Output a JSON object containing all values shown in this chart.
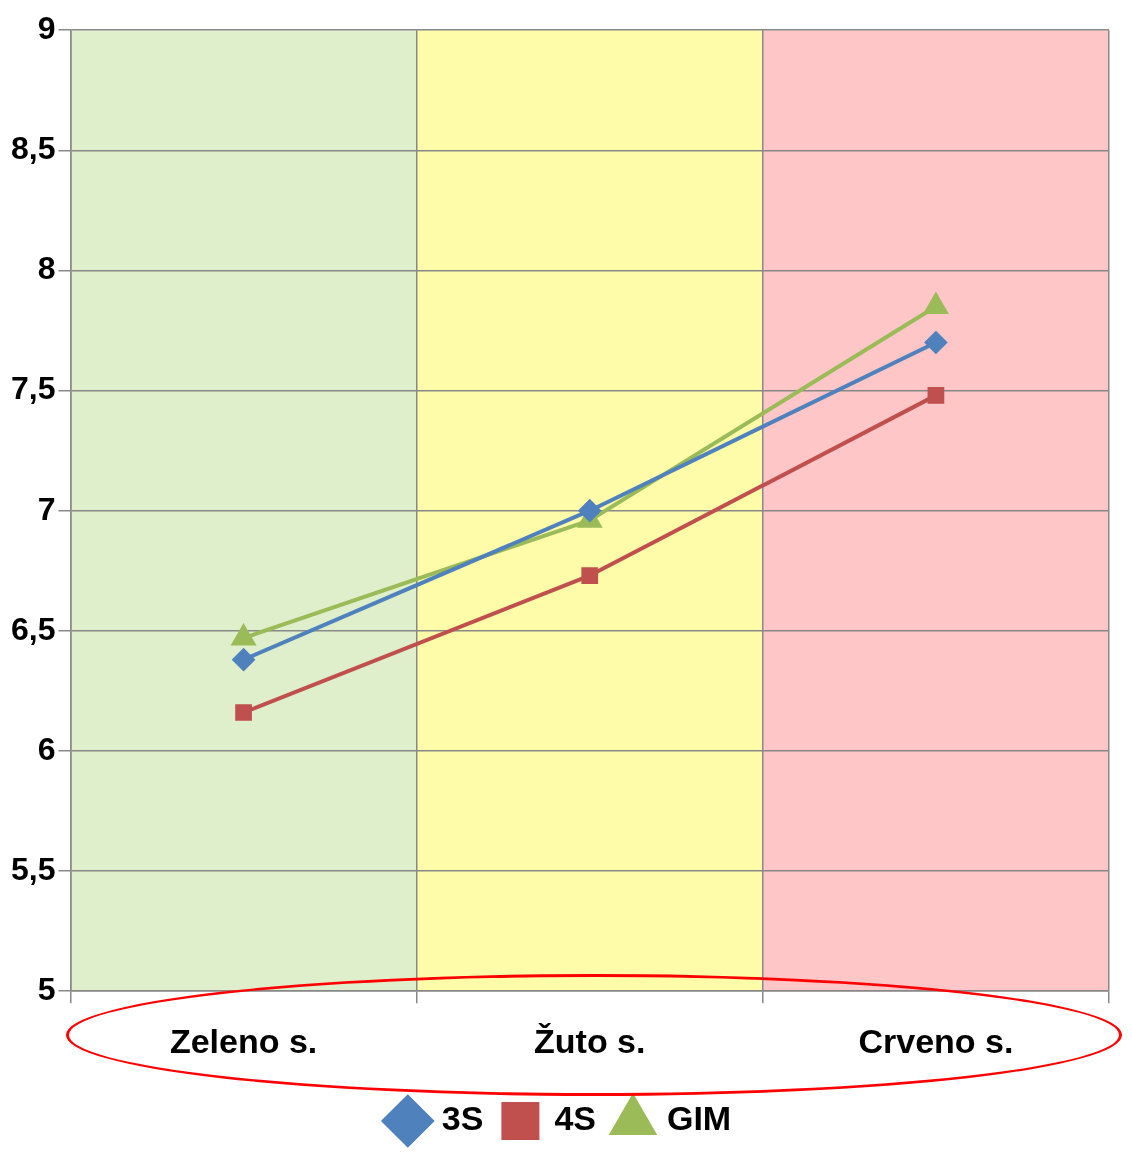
{
  "chart_data": {
    "type": "line",
    "categories": [
      "Zeleno s.",
      "Žuto s.",
      "Crveno s."
    ],
    "series": [
      {
        "name": "3S",
        "color": "#4f81bd",
        "marker": "diamond",
        "values": [
          6.38,
          7.0,
          7.7
        ]
      },
      {
        "name": "4S",
        "color": "#c0504d",
        "marker": "square",
        "values": [
          6.16,
          6.73,
          7.48
        ]
      },
      {
        "name": "GIM",
        "color": "#9bbb59",
        "marker": "triangle",
        "values": [
          6.47,
          6.96,
          7.85
        ]
      }
    ],
    "ylim": [
      5,
      9
    ],
    "yticks": [
      5,
      {
        "value": 5.5,
        "label": "5,5"
      },
      6,
      {
        "value": 6.5,
        "label": "6,5"
      },
      7,
      {
        "value": 7.5,
        "label": "7,5"
      },
      8,
      {
        "value": 8.5,
        "label": "8,5"
      },
      9
    ],
    "bands": [
      {
        "axis": "x",
        "from": "Zeleno s.",
        "to": "Zeleno s.",
        "color": "#dfeecb"
      },
      {
        "axis": "x",
        "from": "Žuto s.",
        "to": "Žuto s.",
        "color": "#fefca9"
      },
      {
        "axis": "x",
        "from": "Crveno s.",
        "to": "Crveno s.",
        "color": "#fec6c6"
      }
    ],
    "grid": true,
    "legend": "bottom",
    "line_style": "solid"
  }
}
